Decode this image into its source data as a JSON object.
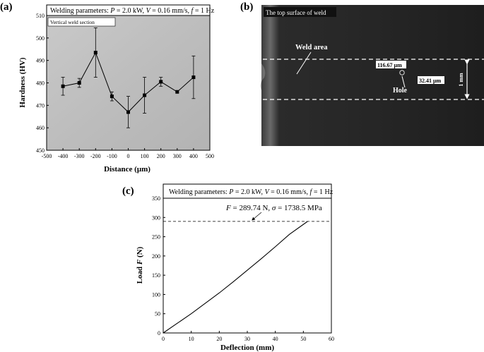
{
  "panels": {
    "a": {
      "label": "(a)",
      "params_prefix": "Welding parameters: ",
      "params_p": "P",
      "params_p_val": " = 2.0 kW, ",
      "params_v": "V",
      "params_v_val": " = 0.16 mm/s, ",
      "params_f": "f",
      "params_f_val": " = 1 Hz",
      "inset_label": "Vertical weld section"
    },
    "b": {
      "label": "(b)",
      "title": "The top surface of weld",
      "weld_area": "Weld area",
      "hole": "Hole",
      "dim1": "116.67 μm",
      "dim2": "32.41 μm",
      "scale": "1 mm"
    },
    "c": {
      "label": "(c)",
      "params_prefix": "Welding parameters: ",
      "params_p": "P",
      "params_p_val": " = 2.0 kW, ",
      "params_v": "V",
      "params_v_val": " = 0.16 mm/s, ",
      "params_f": "f",
      "params_f_val": " = 1 Hz",
      "annot_f": "F",
      "annot_f_val": " = 289.74 N, ",
      "annot_s": "σ",
      "annot_s_val": " = 1738.5 MPa"
    }
  },
  "chart_data": [
    {
      "id": "a",
      "type": "line",
      "xlabel": "Distance (μm)",
      "ylabel": "Hardness (HV)",
      "xlim": [
        -500,
        500
      ],
      "ylim": [
        450,
        510
      ],
      "xticks": [
        -500,
        -400,
        -300,
        -200,
        -100,
        0,
        100,
        200,
        300,
        400,
        500
      ],
      "yticks": [
        450,
        460,
        470,
        480,
        490,
        500,
        510
      ],
      "x": [
        -400,
        -300,
        -200,
        -100,
        0,
        100,
        200,
        300,
        400
      ],
      "y": [
        478.5,
        480,
        493.5,
        474,
        467,
        474.5,
        480.5,
        476,
        482.5
      ],
      "err": [
        4,
        2,
        11,
        2,
        7,
        8,
        2,
        0,
        9.5
      ],
      "marker": "square",
      "color": "#000000"
    },
    {
      "id": "c",
      "type": "line",
      "xlabel": "Deflection (mm)",
      "ylabel": "Load F (N)",
      "xlim": [
        0,
        60
      ],
      "ylim": [
        0,
        350
      ],
      "xticks": [
        0,
        10,
        20,
        30,
        40,
        50,
        60
      ],
      "yticks": [
        0,
        50,
        100,
        150,
        200,
        250,
        300,
        350
      ],
      "x": [
        0,
        5,
        10,
        15,
        20,
        25,
        30,
        35,
        40,
        45,
        51.5
      ],
      "y": [
        0,
        25,
        50,
        77,
        104,
        133,
        163,
        193,
        224,
        256,
        289.74
      ],
      "reference_y": 289.74,
      "color": "#000000"
    }
  ]
}
